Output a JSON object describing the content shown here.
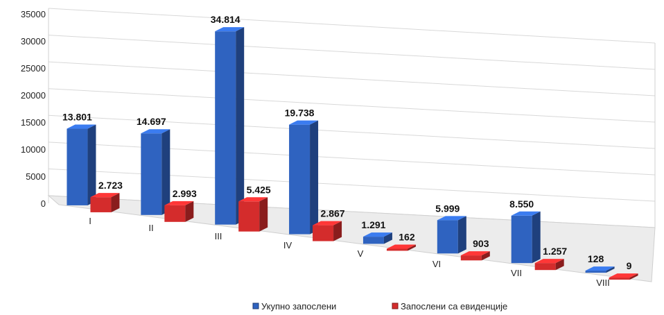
{
  "chart_data": {
    "type": "bar",
    "categories": [
      "I",
      "II",
      "III",
      "IV",
      "V",
      "VI",
      "VII",
      "VIII"
    ],
    "series": [
      {
        "name": "Укупно запослени",
        "color": "#2f63c0",
        "values": [
          13801,
          14697,
          34814,
          19738,
          1291,
          5999,
          8550,
          128
        ],
        "labels": [
          "13.801",
          "14.697",
          "34.814",
          "19.738",
          "1.291",
          "5.999",
          "8.550",
          "128"
        ]
      },
      {
        "name": "Запослени са евиденције",
        "color": "#d42c2c",
        "values": [
          2723,
          2993,
          5425,
          2867,
          162,
          903,
          1257,
          9
        ],
        "labels": [
          "2.723",
          "2.993",
          "5.425",
          "2.867",
          "162",
          "903",
          "1.257",
          "9"
        ]
      }
    ],
    "y_ticks": [
      "0",
      "5000",
      "10000",
      "15000",
      "20000",
      "25000",
      "30000",
      "35000"
    ],
    "ylim": [
      0,
      35000
    ],
    "grid": true,
    "legend_position": "bottom",
    "title": "",
    "xlabel": "",
    "ylabel": ""
  }
}
